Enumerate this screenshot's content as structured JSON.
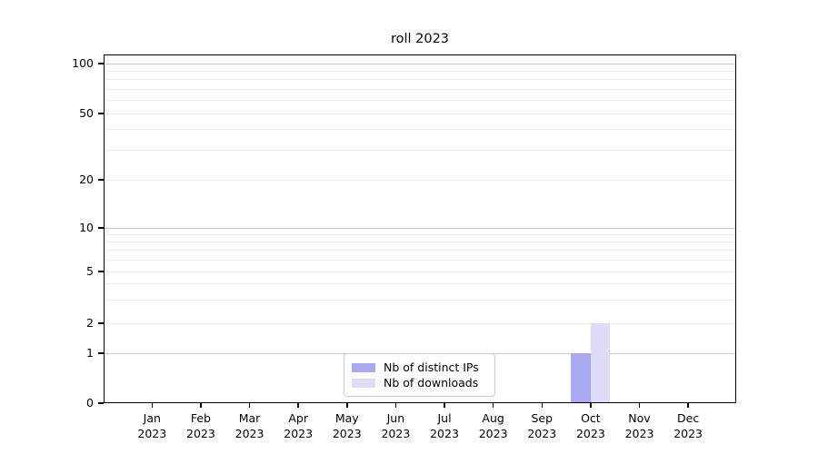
{
  "chart_data": {
    "type": "bar",
    "title": "roll 2023",
    "categories": [
      "Jan 2023",
      "Feb 2023",
      "Mar 2023",
      "Apr 2023",
      "May 2023",
      "Jun 2023",
      "Jul 2023",
      "Aug 2023",
      "Sep 2023",
      "Oct 2023",
      "Nov 2023",
      "Dec 2023"
    ],
    "series": [
      {
        "name": "Nb of distinct IPs",
        "color": "#a9a9f2",
        "values": [
          0,
          0,
          0,
          0,
          0,
          0,
          0,
          0,
          0,
          1,
          0,
          0
        ]
      },
      {
        "name": "Nb of downloads",
        "color": "#dcdcf8",
        "values": [
          0,
          0,
          0,
          0,
          0,
          0,
          0,
          0,
          0,
          2,
          0,
          0
        ]
      }
    ],
    "yscale": "symlog",
    "ylim": [
      0,
      113
    ],
    "yticks": [
      0,
      1,
      2,
      5,
      10,
      20,
      50,
      100
    ],
    "major_gridlines": [
      1,
      10,
      100
    ],
    "minor_gridlines": [
      2,
      3,
      4,
      5,
      6,
      7,
      8,
      9,
      20,
      30,
      40,
      50,
      60,
      70,
      80,
      90
    ],
    "grid": "on",
    "legend_position": "lower center",
    "colors": {
      "major_grid": "#c8c8c8",
      "minor_grid": "#ededed",
      "axis": "#000000",
      "background": "#ffffff"
    }
  }
}
